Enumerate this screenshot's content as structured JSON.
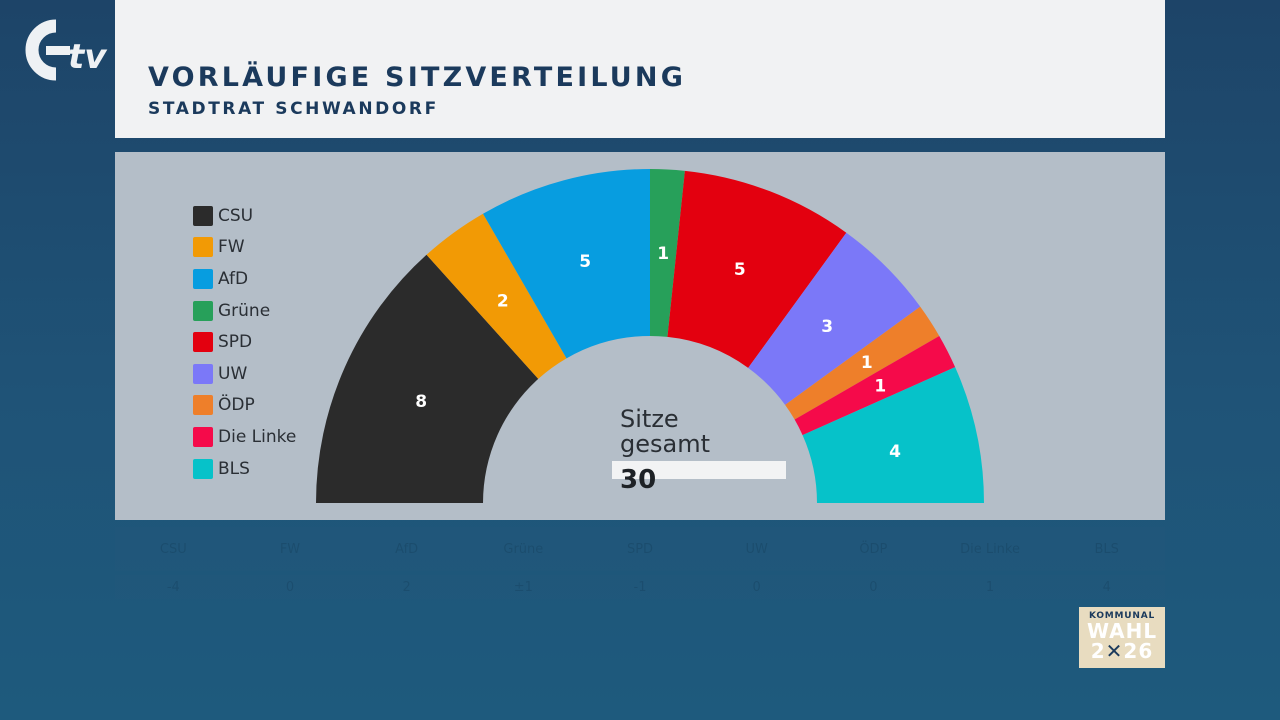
{
  "header": {
    "title": "VORLÄUFIGE SITZVERTEILUNG",
    "subtitle": "STADTRAT SCHWANDORF"
  },
  "logo": {
    "icon": "otv-logo-icon",
    "text": "tv"
  },
  "badge": {
    "line1": "KOMMUNAL",
    "line2": "WAHL",
    "year_prefix": "2",
    "year_mark": "✕",
    "year_suffix": "26"
  },
  "total": {
    "label_line1": "Sitze",
    "label_line2": "gesamt",
    "value": "30"
  },
  "chart_data": {
    "type": "pie",
    "subtype": "hemicycle",
    "title": "Vorläufige Sitzverteilung",
    "subtitle": "Stadtrat Schwandorf",
    "total_seats": 30,
    "categories": [
      "CSU",
      "FW",
      "AfD",
      "Grüne",
      "SPD",
      "UW",
      "ÖDP",
      "Die Linke",
      "BLS"
    ],
    "values": [
      8,
      2,
      5,
      1,
      5,
      3,
      1,
      1,
      4
    ],
    "colors": [
      "#2b2b2b",
      "#f29a05",
      "#079de0",
      "#27a05a",
      "#e3000f",
      "#7b78f8",
      "#ee7f2a",
      "#f50a4a",
      "#06c2c9"
    ],
    "legend_position": "left",
    "center_annotation": "Sitze gesamt 30"
  },
  "legend": [
    {
      "label": "CSU",
      "color": "#2b2b2b"
    },
    {
      "label": "FW",
      "color": "#f29a05"
    },
    {
      "label": "AfD",
      "color": "#079de0"
    },
    {
      "label": "Grüne",
      "color": "#27a05a"
    },
    {
      "label": "SPD",
      "color": "#e3000f"
    },
    {
      "label": "UW",
      "color": "#7b78f8"
    },
    {
      "label": "ÖDP",
      "color": "#ee7f2a"
    },
    {
      "label": "Die Linke",
      "color": "#f50a4a"
    },
    {
      "label": "BLS",
      "color": "#06c2c9"
    }
  ],
  "change_table": {
    "headers": [
      "CSU",
      "FW",
      "AfD",
      "Grüne",
      "SPD",
      "UW",
      "ÖDP",
      "Die Linke",
      "BLS"
    ],
    "values": [
      "-4",
      "0",
      "2",
      "±1",
      "-1",
      "0",
      "0",
      "1",
      "4"
    ]
  }
}
